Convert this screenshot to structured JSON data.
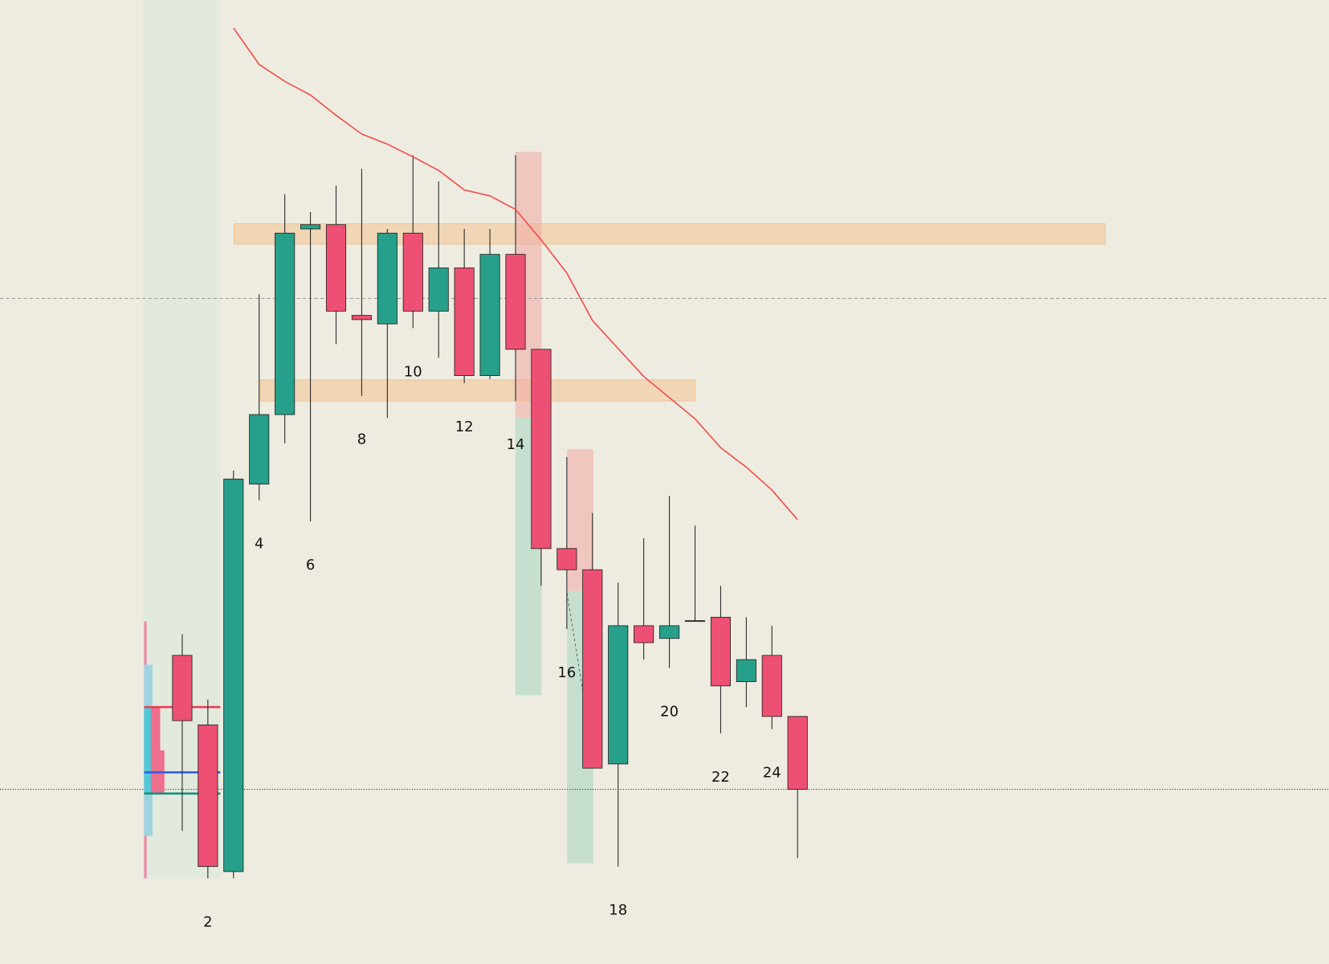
{
  "chart_data": {
    "type": "candlestick",
    "categories": [
      null,
      "2",
      null,
      "4",
      null,
      "6",
      null,
      "8",
      null,
      "10",
      null,
      "12",
      null,
      "14",
      null,
      "16",
      null,
      "18",
      null,
      "20",
      null,
      "22",
      null,
      "24",
      null
    ],
    "opens": [
      364,
      282,
      109,
      566,
      648,
      867,
      872,
      765,
      755,
      862,
      770,
      821,
      694,
      837,
      725,
      490,
      465,
      236,
      399,
      384,
      405,
      409,
      333,
      364,
      292
    ],
    "closes": [
      287,
      115,
      572,
      648,
      862,
      872,
      770,
      760,
      862,
      770,
      821,
      694,
      837,
      725,
      490,
      465,
      231,
      399,
      379,
      399,
      404,
      328,
      359,
      292,
      206
    ],
    "highs": [
      389,
      312,
      582,
      790,
      908,
      887,
      918,
      938,
      867,
      954,
      923,
      867,
      867,
      954,
      725,
      598,
      532,
      450,
      502,
      552,
      517,
      446,
      409,
      399,
      292
    ],
    "lows": [
      157,
      101,
      101,
      547,
      614,
      522,
      731,
      670,
      644,
      750,
      715,
      685,
      690,
      664,
      446,
      395,
      231,
      115,
      359,
      349,
      404,
      272,
      303,
      277,
      125
    ],
    "up_color": "#26a08a",
    "down_color": "#ee5073",
    "ma": {
      "color": "#f0534f",
      "values": [
        null,
        null,
        1104,
        1061,
        1041,
        1025,
        1001,
        979,
        967,
        952,
        936,
        913,
        906,
        890,
        854,
        815,
        759,
        726,
        693,
        668,
        643,
        609,
        586,
        559,
        524
      ]
    },
    "ylim": [
      0,
      1137
    ]
  }
}
